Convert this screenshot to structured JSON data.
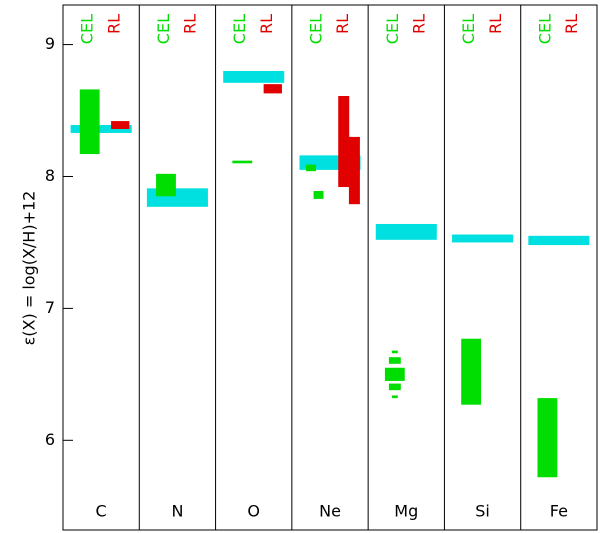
{
  "chart_data": {
    "type": "range",
    "ylabel": "ε(X) = log(X/H)+12",
    "categories": [
      "C",
      "N",
      "O",
      "Ne",
      "Mg",
      "Si",
      "Fe"
    ],
    "ylim": [
      5.32,
      9.3
    ],
    "yticks": [
      6,
      7,
      8,
      9
    ],
    "series": [
      {
        "color": "#00e0e0",
        "values": [
          [
            [
              8.33,
              8.39
            ]
          ],
          [
            [
              7.77,
              7.91
            ]
          ],
          [
            [
              8.71,
              8.8
            ]
          ],
          [
            [
              8.05,
              8.16
            ]
          ],
          [
            [
              7.52,
              7.64
            ]
          ],
          [
            [
              7.5,
              7.56
            ]
          ],
          [
            [
              7.48,
              7.55
            ]
          ]
        ]
      },
      {
        "name": "CEL",
        "color": "#00dd00",
        "values": [
          [
            [
              8.17,
              8.66
            ]
          ],
          [
            [
              7.85,
              8.02
            ]
          ],
          [
            [
              8.1,
              8.12
            ]
          ],
          [
            [
              8.04,
              8.09
            ],
            [
              7.83,
              7.89
            ]
          ],
          [
            [
              6.66,
              6.68
            ],
            [
              6.58,
              6.63
            ],
            [
              6.45,
              6.55
            ],
            [
              6.38,
              6.43
            ],
            [
              6.32,
              6.34
            ]
          ],
          [
            [
              6.27,
              6.77
            ]
          ],
          [
            [
              5.72,
              6.32
            ]
          ]
        ]
      },
      {
        "name": "RL",
        "color": "#e00000",
        "values": [
          [
            [
              8.36,
              8.42
            ]
          ],
          [],
          [
            [
              8.63,
              8.7
            ]
          ],
          [
            [
              7.92,
              8.61
            ],
            [
              7.79,
              8.3
            ]
          ],
          [],
          [],
          []
        ]
      }
    ]
  }
}
